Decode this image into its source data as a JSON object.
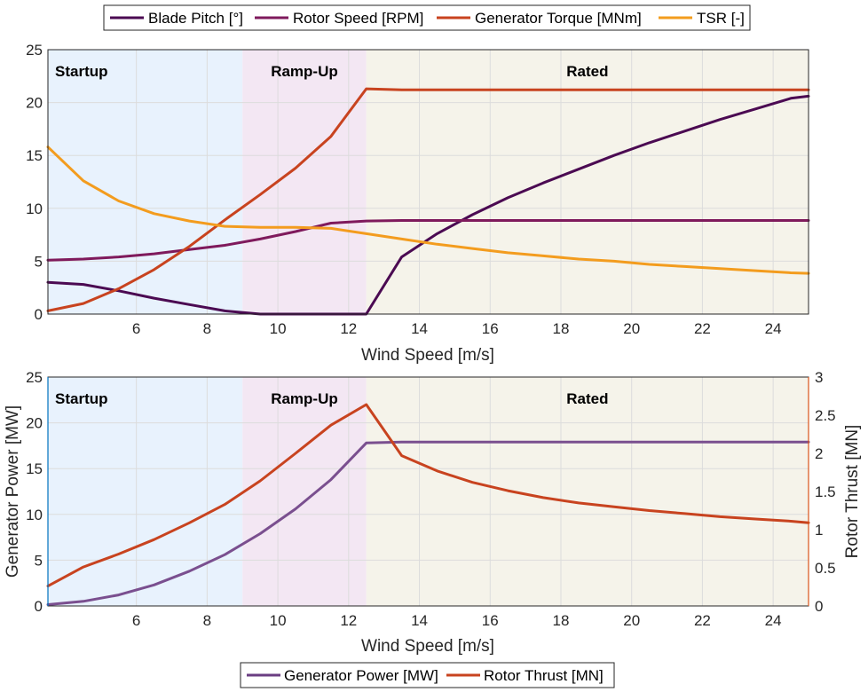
{
  "chart_data": [
    {
      "type": "line",
      "xlabel": "Wind Speed [m/s]",
      "ylabel": "",
      "xlim": [
        3.5,
        25
      ],
      "ylim": [
        0,
        25
      ],
      "xticks": [
        6,
        8,
        10,
        12,
        14,
        16,
        18,
        20,
        22,
        24
      ],
      "yticks": [
        0,
        5,
        10,
        15,
        20,
        25
      ],
      "grid": true,
      "legend": "top",
      "regions": [
        {
          "label": "Startup",
          "x": [
            3.5,
            9.0
          ],
          "color": "#e8f2fd"
        },
        {
          "label": "Ramp-Up",
          "x": [
            9.0,
            12.5
          ],
          "color": "#f3e7f3"
        },
        {
          "label": "Rated",
          "x": [
            12.5,
            25
          ],
          "color": "#f5f3ea"
        }
      ],
      "series": [
        {
          "name": "Blade Pitch [°]",
          "color": "#4b0a52",
          "x": [
            3.5,
            4.5,
            5.5,
            6.5,
            7.5,
            8.5,
            9.5,
            10.5,
            11.5,
            12.5,
            13.5,
            14.5,
            15.5,
            16.5,
            17.5,
            18.5,
            19.5,
            20.5,
            21.5,
            22.5,
            23.5,
            24.5,
            25
          ],
          "y": [
            3.0,
            2.8,
            2.2,
            1.5,
            0.9,
            0.3,
            0.0,
            0.0,
            0.0,
            0.0,
            5.4,
            7.6,
            9.4,
            11.0,
            12.4,
            13.7,
            15.0,
            16.2,
            17.3,
            18.4,
            19.4,
            20.4,
            20.6
          ]
        },
        {
          "name": "Rotor Speed [RPM]",
          "color": "#7f1a5c",
          "x": [
            3.5,
            4.5,
            5.5,
            6.5,
            7.5,
            8.5,
            9.5,
            10.5,
            11.5,
            12.5,
            13.5,
            14.5,
            16,
            18,
            20,
            22,
            24,
            25
          ],
          "y": [
            5.1,
            5.2,
            5.4,
            5.7,
            6.1,
            6.5,
            7.1,
            7.8,
            8.6,
            8.8,
            8.85,
            8.85,
            8.85,
            8.85,
            8.85,
            8.85,
            8.85,
            8.85
          ]
        },
        {
          "name": "Generator Torque [MNm]",
          "color": "#c8431f",
          "x": [
            3.5,
            4.5,
            5.5,
            6.5,
            7.5,
            8.5,
            9.5,
            10.5,
            11.5,
            12.5,
            13.5,
            14.5,
            16,
            18,
            20,
            22,
            24,
            25
          ],
          "y": [
            0.3,
            1.0,
            2.4,
            4.2,
            6.4,
            8.9,
            11.3,
            13.8,
            16.8,
            21.3,
            21.2,
            21.2,
            21.2,
            21.2,
            21.2,
            21.2,
            21.2,
            21.2
          ]
        },
        {
          "name": "TSR [-]",
          "color": "#f39c1e",
          "x": [
            3.5,
            4.5,
            5.5,
            6.5,
            7.5,
            8.5,
            9.5,
            10.5,
            11.5,
            12.5,
            13.5,
            14.5,
            15.5,
            16.5,
            17.5,
            18.5,
            19.5,
            20.5,
            21.5,
            22.5,
            23.5,
            24.5,
            25
          ],
          "y": [
            15.8,
            12.6,
            10.7,
            9.5,
            8.8,
            8.3,
            8.2,
            8.2,
            8.1,
            7.6,
            7.1,
            6.6,
            6.2,
            5.8,
            5.5,
            5.2,
            5.0,
            4.7,
            4.5,
            4.3,
            4.1,
            3.9,
            3.85
          ]
        }
      ]
    },
    {
      "type": "line",
      "xlabel": "Wind Speed [m/s]",
      "ylabel": "Generator Power [MW]",
      "ylabel_right": "Rotor Thrust [MN]",
      "xlim": [
        3.5,
        25
      ],
      "ylim": [
        0,
        25
      ],
      "ylim_right": [
        0,
        3
      ],
      "xticks": [
        6,
        8,
        10,
        12,
        14,
        16,
        18,
        20,
        22,
        24
      ],
      "yticks": [
        0,
        5,
        10,
        15,
        20,
        25
      ],
      "yticks_right": [
        "0",
        "0.5",
        "1",
        "1.5",
        "2",
        "2.5",
        "3"
      ],
      "grid": true,
      "legend": "bottom",
      "left_axis_color": "#0072bd",
      "right_axis_color": "#d95319",
      "regions": [
        {
          "label": "Startup",
          "x": [
            3.5,
            9.0
          ],
          "color": "#e8f2fd"
        },
        {
          "label": "Ramp-Up",
          "x": [
            9.0,
            12.5
          ],
          "color": "#f3e7f3"
        },
        {
          "label": "Rated",
          "x": [
            12.5,
            25
          ],
          "color": "#f5f3ea"
        }
      ],
      "series": [
        {
          "name": "Generator Power [MW]",
          "color": "#7a4f8f",
          "legend_color": "#6a3d82",
          "axis": "left",
          "x": [
            3.5,
            4.5,
            5.5,
            6.5,
            7.5,
            8.5,
            9.5,
            10.5,
            11.5,
            12.5,
            13.5,
            14.5,
            16,
            18,
            20,
            22,
            24,
            25
          ],
          "y": [
            0.15,
            0.5,
            1.2,
            2.3,
            3.8,
            5.6,
            7.9,
            10.6,
            13.8,
            17.8,
            17.9,
            17.9,
            17.9,
            17.9,
            17.9,
            17.9,
            17.9,
            17.9
          ]
        },
        {
          "name": "Rotor Thrust [MN]",
          "color": "#c8431f",
          "axis": "right",
          "x": [
            3.5,
            4.5,
            5.5,
            6.5,
            7.5,
            8.5,
            9.5,
            10.5,
            11.5,
            12.5,
            13.5,
            14.5,
            15.5,
            16.5,
            17.5,
            18.5,
            19.5,
            20.5,
            21.5,
            22.5,
            23.5,
            24.5,
            25
          ],
          "y": [
            0.26,
            0.51,
            0.68,
            0.87,
            1.09,
            1.33,
            1.64,
            2.0,
            2.37,
            2.64,
            1.97,
            1.77,
            1.62,
            1.51,
            1.42,
            1.35,
            1.3,
            1.25,
            1.21,
            1.17,
            1.14,
            1.11,
            1.09
          ]
        }
      ]
    }
  ]
}
